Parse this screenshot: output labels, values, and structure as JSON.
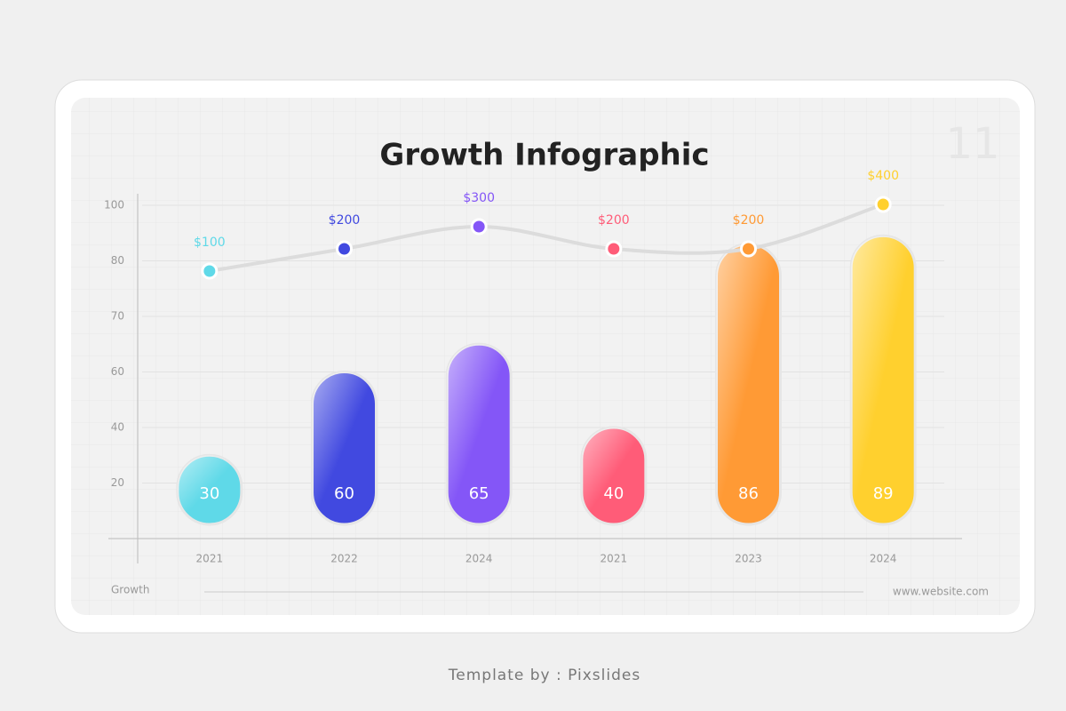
{
  "page_number": "11",
  "footer_left": "Growth",
  "footer_right": "www.website.com",
  "credit": "Template by : Pixslides",
  "chart_data": {
    "type": "bar",
    "title": "Growth Infographic",
    "categories": [
      "2021",
      "2022",
      "2024",
      "2021",
      "2023",
      "2024"
    ],
    "values": [
      30,
      60,
      65,
      40,
      86,
      89
    ],
    "colors": [
      "#5fd9e8",
      "#4149e0",
      "#8456f7",
      "#ff5c78",
      "#ff9a35",
      "#ffd02e"
    ],
    "yticks": [
      20,
      40,
      60,
      70,
      80,
      100
    ],
    "grid": true,
    "line": {
      "values": [
        100,
        200,
        300,
        200,
        200,
        400
      ],
      "value_labels": [
        "$100",
        "$200",
        "$300",
        "$200",
        "$200",
        "$400"
      ],
      "color": "#dcdcdc"
    }
  }
}
